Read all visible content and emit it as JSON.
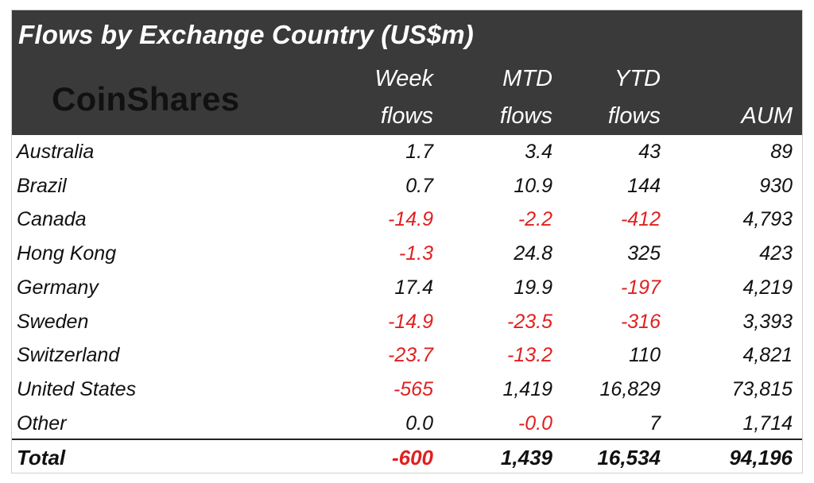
{
  "title": "Flows by Exchange Country (US$m)",
  "logo_text": "CoinShares",
  "columns": [
    {
      "line1": "Week",
      "line2": "flows"
    },
    {
      "line1": "MTD",
      "line2": "flows"
    },
    {
      "line1": "YTD",
      "line2": "flows"
    },
    {
      "line1": "",
      "line2": "AUM"
    }
  ],
  "rows": [
    {
      "country": "Australia",
      "week": "1.7",
      "mtd": "3.4",
      "ytd": "43",
      "aum": "89"
    },
    {
      "country": "Brazil",
      "week": "0.7",
      "mtd": "10.9",
      "ytd": "144",
      "aum": "930"
    },
    {
      "country": "Canada",
      "week": "-14.9",
      "mtd": "-2.2",
      "ytd": "-412",
      "aum": "4,793"
    },
    {
      "country": "Hong Kong",
      "week": "-1.3",
      "mtd": "24.8",
      "ytd": "325",
      "aum": "423"
    },
    {
      "country": "Germany",
      "week": "17.4",
      "mtd": "19.9",
      "ytd": "-197",
      "aum": "4,219"
    },
    {
      "country": "Sweden",
      "week": "-14.9",
      "mtd": "-23.5",
      "ytd": "-316",
      "aum": "3,393"
    },
    {
      "country": "Switzerland",
      "week": "-23.7",
      "mtd": "-13.2",
      "ytd": "110",
      "aum": "4,821"
    },
    {
      "country": "United States",
      "week": "-565",
      "mtd": "1,419",
      "ytd": "16,829",
      "aum": "73,815"
    },
    {
      "country": "Other",
      "week": "0.0",
      "mtd": "-0.0",
      "ytd": "7",
      "aum": "1,714"
    }
  ],
  "total": {
    "label": "Total",
    "week": "-600",
    "mtd": "1,439",
    "ytd": "16,534",
    "aum": "94,196"
  },
  "colors": {
    "header_bg": "#3a3a3a",
    "negative": "#e02020",
    "text": "#111111"
  }
}
